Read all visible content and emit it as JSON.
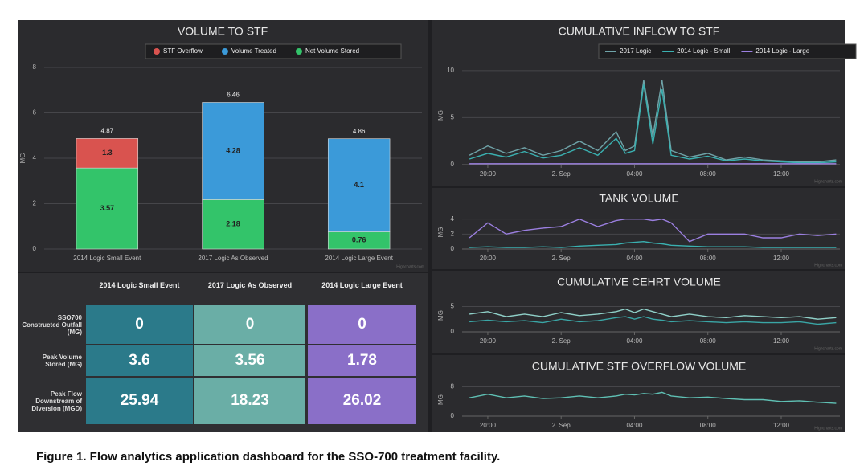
{
  "chart_data": [
    {
      "type": "bar",
      "stacking": "normal",
      "title": "VOLUME TO STF",
      "y_label": "MG",
      "credit": "Highcharts.com",
      "categories": [
        "2014 Logic Small Event",
        "2017 Logic As Observed",
        "2014 Logic Large Event"
      ],
      "series": [
        {
          "name": "STF Overflow",
          "color": "#d9534f",
          "values": [
            1.3,
            null,
            null
          ]
        },
        {
          "name": "Volume Treated",
          "color": "#3b9ad9",
          "values": [
            null,
            4.28,
            4.1
          ]
        },
        {
          "name": "Net Volume Stored",
          "color": "#33c46a",
          "values": [
            3.57,
            2.18,
            0.76
          ]
        }
      ],
      "stack_totals": [
        4.87,
        6.46,
        4.86
      ],
      "ylim": [
        0,
        8
      ],
      "yticks": [
        0,
        2,
        4,
        6,
        8
      ],
      "grid": true,
      "legend": "top"
    },
    {
      "type": "line",
      "title": "CUMULATIVE INFLOW TO STF",
      "y_label": "MG",
      "credit": "Highcharts.com",
      "legend": "top",
      "x": [
        19,
        20,
        21,
        22,
        23,
        24,
        25,
        26,
        27,
        27.5,
        28,
        28.5,
        29,
        29.5,
        30,
        31,
        32,
        33,
        34,
        35,
        36,
        37,
        38,
        39
      ],
      "xlim": [
        18.6,
        39.2
      ],
      "xticks": [
        {
          "value": 20,
          "label": "20:00"
        },
        {
          "value": 24,
          "label": "2. Sep"
        },
        {
          "value": 28,
          "label": "04:00"
        },
        {
          "value": 32,
          "label": "08:00"
        },
        {
          "value": 36,
          "label": "12:00"
        }
      ],
      "ylim": [
        0,
        10.5
      ],
      "yticks": [
        0,
        5,
        10
      ],
      "grid": true,
      "series": [
        {
          "name": "2017 Logic",
          "color": "#6fa3a8",
          "values": [
            1,
            2,
            1.2,
            1.8,
            1,
            1.5,
            2.5,
            1.5,
            3.5,
            1.5,
            2,
            9,
            3,
            9,
            1.5,
            0.8,
            1.2,
            0.5,
            0.8,
            0.5,
            0.4,
            0.3,
            0.3,
            0.5
          ]
        },
        {
          "name": "2014 Logic - Small",
          "color": "#3ab0b0",
          "values": [
            0.6,
            1.2,
            0.8,
            1.4,
            0.7,
            1,
            1.8,
            1,
            2.8,
            1.2,
            1.5,
            8.5,
            2.2,
            8,
            1,
            0.6,
            0.9,
            0.4,
            0.6,
            0.4,
            0.3,
            0.2,
            0.2,
            0.3
          ]
        },
        {
          "name": "2014 Logic - Large",
          "color": "#9b7fe0",
          "values": [
            0.1,
            0.1,
            0.1,
            0.1,
            0.1,
            0.1,
            0.1,
            0.1,
            0.1,
            0.1,
            0.1,
            0.1,
            0.1,
            0.1,
            0.1,
            0.1,
            0.1,
            0.1,
            0.1,
            0.1,
            0.1,
            0.1,
            0.1,
            0.1
          ]
        }
      ]
    },
    {
      "type": "line",
      "title": "TANK VOLUME",
      "y_label": "MG",
      "credit": "Highcharts.com",
      "x": [
        19,
        20,
        21,
        22,
        23,
        24,
        25,
        26,
        27,
        27.5,
        28,
        28.5,
        29,
        29.5,
        30,
        31,
        32,
        33,
        34,
        35,
        36,
        37,
        38,
        39
      ],
      "xlim": [
        18.6,
        39.2
      ],
      "xticks": [
        {
          "value": 20,
          "label": "20:00"
        },
        {
          "value": 24,
          "label": "2. Sep"
        },
        {
          "value": 28,
          "label": "04:00"
        },
        {
          "value": 32,
          "label": "08:00"
        },
        {
          "value": 36,
          "label": "12:00"
        }
      ],
      "ylim": [
        0,
        4.5
      ],
      "yticks": [
        0,
        2,
        4
      ],
      "grid": true,
      "series": [
        {
          "color": "#9b7fe0",
          "values": [
            1.5,
            3.5,
            2,
            2.5,
            2.8,
            3,
            4,
            3,
            3.8,
            4,
            4,
            4,
            3.8,
            4,
            3.5,
            1,
            2,
            2,
            2,
            1.5,
            1.5,
            2,
            1.8,
            2
          ]
        },
        {
          "color": "#3ab0b0",
          "values": [
            0.2,
            0.3,
            0.2,
            0.2,
            0.3,
            0.2,
            0.4,
            0.5,
            0.6,
            0.8,
            0.9,
            1,
            0.8,
            0.7,
            0.5,
            0.4,
            0.3,
            0.3,
            0.3,
            0.2,
            0.2,
            0.2,
            0.2,
            0.2
          ]
        }
      ]
    },
    {
      "type": "line",
      "title": "CUMULATIVE CEHRT VOLUME",
      "y_label": "MG",
      "credit": "Highcharts.com",
      "x": [
        19,
        20,
        21,
        22,
        23,
        24,
        25,
        26,
        27,
        27.5,
        28,
        28.5,
        29,
        29.5,
        30,
        31,
        32,
        33,
        34,
        35,
        36,
        37,
        38,
        39
      ],
      "xlim": [
        18.6,
        39.2
      ],
      "xticks": [
        {
          "value": 20,
          "label": "20:00"
        },
        {
          "value": 24,
          "label": "2. Sep"
        },
        {
          "value": 28,
          "label": "04:00"
        },
        {
          "value": 32,
          "label": "08:00"
        },
        {
          "value": 36,
          "label": "12:00"
        }
      ],
      "ylim": [
        0,
        6.5
      ],
      "yticks": [
        0,
        5
      ],
      "grid": true,
      "series": [
        {
          "color": "#8fd0c8",
          "values": [
            3.5,
            4,
            3,
            3.5,
            3,
            3.8,
            3.2,
            3.5,
            4,
            4.5,
            3.8,
            4.5,
            4,
            3.5,
            3,
            3.5,
            3,
            2.8,
            3.2,
            3,
            2.8,
            3,
            2.5,
            2.8
          ]
        },
        {
          "color": "#3aa6a6",
          "values": [
            2,
            2.3,
            2,
            2.2,
            1.8,
            2.5,
            2,
            2.2,
            2.8,
            3,
            2.5,
            3,
            2.5,
            2.3,
            2,
            2.2,
            2,
            1.8,
            2,
            1.8,
            1.8,
            2,
            1.5,
            1.8
          ]
        }
      ]
    },
    {
      "type": "line",
      "title": "CUMULATIVE STF OVERFLOW VOLUME",
      "y_label": "MG",
      "credit": "Highcharts.com",
      "x": [
        19,
        20,
        21,
        22,
        23,
        24,
        25,
        26,
        27,
        27.5,
        28,
        28.5,
        29,
        29.5,
        30,
        31,
        32,
        33,
        34,
        35,
        36,
        37,
        38,
        39
      ],
      "xlim": [
        18.6,
        39.2
      ],
      "xticks": [
        {
          "value": 20,
          "label": "20:00"
        },
        {
          "value": 24,
          "label": "2. Sep"
        },
        {
          "value": 28,
          "label": "04:00"
        },
        {
          "value": 32,
          "label": "08:00"
        },
        {
          "value": 36,
          "label": "12:00"
        }
      ],
      "ylim": [
        0,
        9
      ],
      "yticks": [
        0,
        8
      ],
      "grid": true,
      "series": [
        {
          "color": "#5fc0b4",
          "values": [
            5,
            6,
            5,
            5.5,
            4.8,
            5,
            5.5,
            5,
            5.5,
            6,
            5.8,
            6.2,
            6,
            6.5,
            5.5,
            5,
            5.2,
            4.8,
            4.5,
            4.5,
            4,
            4.2,
            3.8,
            3.5
          ]
        }
      ]
    }
  ],
  "table": {
    "columns": [
      "2014 Logic Small Event",
      "2017 Logic As Observed",
      "2014 Logic Large Event"
    ],
    "column_colors": [
      "#2b7a8a",
      "#6aaea6",
      "#8a6fc8"
    ],
    "rows": [
      {
        "label": "SSO700 Constructed Outfall (MG)",
        "cells": [
          "0",
          "0",
          "0"
        ]
      },
      {
        "label": "Peak Volume Stored (MG)",
        "cells": [
          "3.6",
          "3.56",
          "1.78"
        ]
      },
      {
        "label": "Peak Flow Downstream of Diversion (MGD)",
        "cells": [
          "25.94",
          "18.23",
          "26.02"
        ]
      }
    ]
  },
  "caption": "Figure 1. Flow analytics application dashboard for the SSO-700 treatment facility."
}
